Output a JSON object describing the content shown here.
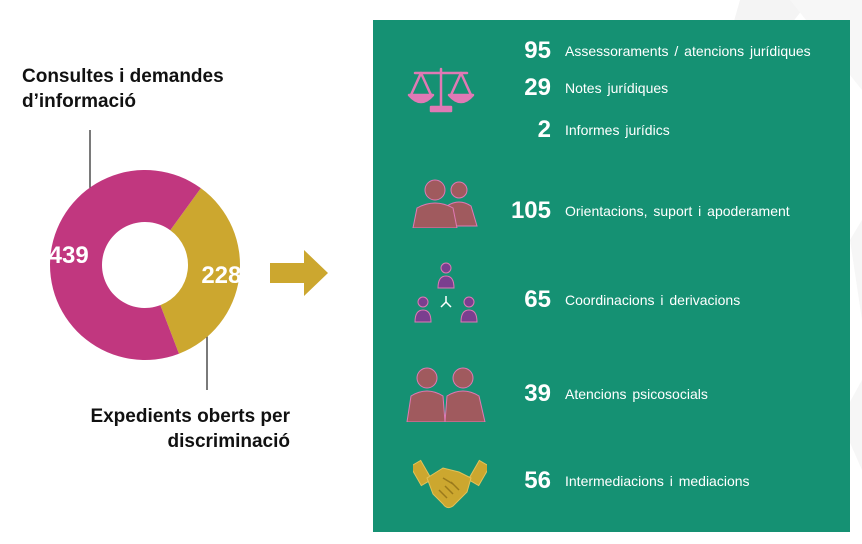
{
  "colors": {
    "panel": "#159173",
    "magenta": "#c1377f",
    "gold": "#cca72f",
    "icon_brown": "#a05a5e",
    "icon_purple": "#7a3f8f",
    "icon_pink": "#e079b5"
  },
  "labels": {
    "consultes": "Consultes i demandes d’informació",
    "expedients": "Expedients oberts per discriminació"
  },
  "chart_data": {
    "type": "pie",
    "categories": [
      "Consultes i demandes d’informació",
      "Expedients oberts per discriminació"
    ],
    "values": [
      439,
      228
    ],
    "value_labels": [
      "439",
      "228"
    ],
    "colors": [
      "#c1377f",
      "#cca72f"
    ],
    "hole": true
  },
  "stats": [
    {
      "value": "95",
      "label": "Assessoraments / atencions jurídiques",
      "icon": "scales-of-justice-icon"
    },
    {
      "value": "29",
      "label": "Notes jurídiques",
      "icon": "scales-of-justice-icon"
    },
    {
      "value": "2",
      "label": "Informes jurídics",
      "icon": "scales-of-justice-icon"
    },
    {
      "value": "105",
      "label": "Orientacions, suport i apoderament",
      "icon": "two-people-icon"
    },
    {
      "value": "65",
      "label": "Coordinacions i derivacions",
      "icon": "network-people-icon"
    },
    {
      "value": "39",
      "label": "Atencions psicosocials",
      "icon": "two-people-icon"
    },
    {
      "value": "56",
      "label": "Intermediacions i mediacions",
      "icon": "handshake-icon"
    }
  ]
}
